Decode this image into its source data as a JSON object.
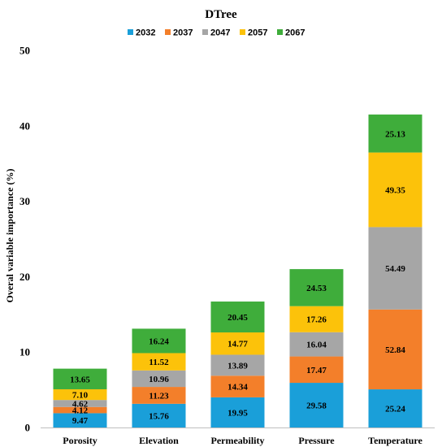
{
  "chart_data": {
    "type": "bar",
    "stacked": true,
    "title": "DTree",
    "ylabel": "Overal variable importance (%)",
    "xlabel": "",
    "ylim": [
      0,
      50
    ],
    "yticks": [
      0,
      10,
      20,
      30,
      40,
      50
    ],
    "grid": false,
    "legend_position": "top",
    "categories": [
      "Porosity",
      "Elevation",
      "Permeability",
      "Pressure",
      "Temperature"
    ],
    "totals": [
      7.8,
      13.1,
      16.7,
      21.0,
      41.5
    ],
    "series": [
      {
        "name": "2032",
        "color": "#1a9fd9",
        "labels": [
          "9.47",
          "15.76",
          "19.95",
          "29.58",
          "25.24"
        ]
      },
      {
        "name": "2037",
        "color": "#f37f2a",
        "labels": [
          "4.12",
          "11.23",
          "14.34",
          "17.47",
          "52.84"
        ]
      },
      {
        "name": "2047",
        "color": "#a6a6a6",
        "labels": [
          "4.62",
          "10.96",
          "13.89",
          "16.04",
          "54.49"
        ]
      },
      {
        "name": "2057",
        "color": "#fcc20a",
        "labels": [
          "7.10",
          "11.52",
          "14.77",
          "17.26",
          "49.35"
        ]
      },
      {
        "name": "2067",
        "color": "#3fad3b",
        "labels": [
          "13.65",
          "16.24",
          "20.45",
          "24.53",
          "25.13"
        ]
      }
    ]
  }
}
